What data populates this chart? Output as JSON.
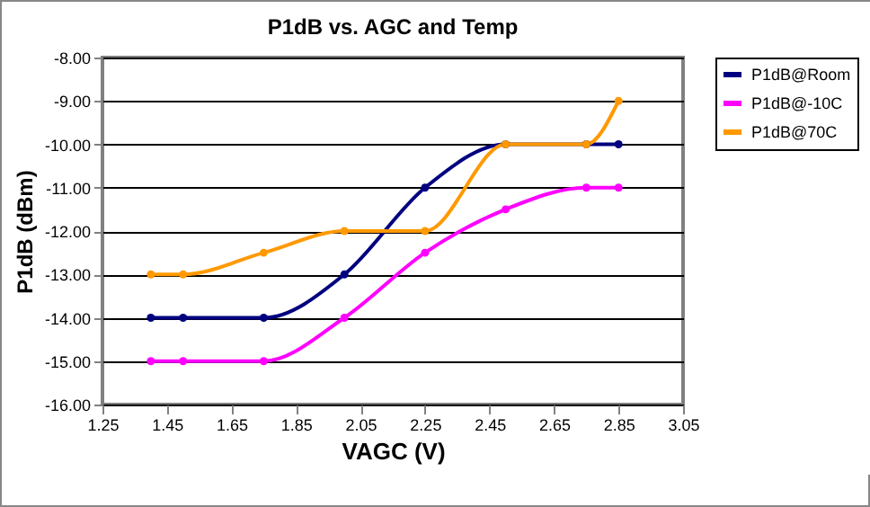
{
  "chart_data": {
    "type": "line",
    "title": "P1dB vs. AGC and Temp",
    "xlabel": "VAGC (V)",
    "ylabel": "P1dB (dBm)",
    "x": [
      1.4,
      1.5,
      1.75,
      2.0,
      2.25,
      2.5,
      2.75,
      2.85
    ],
    "series": [
      {
        "name": "P1dB@Room",
        "color": "#000080",
        "values": [
          -14,
          -14,
          -14,
          -13,
          -11,
          -10,
          -10,
          -10
        ]
      },
      {
        "name": "P1dB@-10C",
        "color": "#ff00ff",
        "values": [
          -15,
          -15,
          -15,
          -14,
          -12.5,
          -11.5,
          -11,
          -11
        ]
      },
      {
        "name": "P1dB@70C",
        "color": "#ff9900",
        "values": [
          -13,
          -13,
          -12.5,
          -12,
          -12,
          -10,
          -10,
          -9
        ]
      }
    ],
    "xlim": [
      1.25,
      3.05
    ],
    "xticks": [
      1.25,
      1.45,
      1.65,
      1.85,
      2.05,
      2.25,
      2.45,
      2.65,
      2.85,
      3.05
    ],
    "ylim": [
      -16,
      -8
    ],
    "yticks": [
      {
        "value": -16,
        "label": "-16.00"
      },
      {
        "value": -15,
        "label": "-15.00"
      },
      {
        "value": -14,
        "label": "-14.00"
      },
      {
        "value": -13,
        "label": "-13.00"
      },
      {
        "value": -12,
        "label": "-12.00"
      },
      {
        "value": -11,
        "label": "-11.00"
      },
      {
        "value": -10,
        "label": "-10.00"
      },
      {
        "value": -9,
        "label": "-9.00"
      },
      {
        "value": -8,
        "label": "-8.00"
      }
    ],
    "grid": "y",
    "legend": "right",
    "marker": "circle",
    "line_style": "solid"
  }
}
